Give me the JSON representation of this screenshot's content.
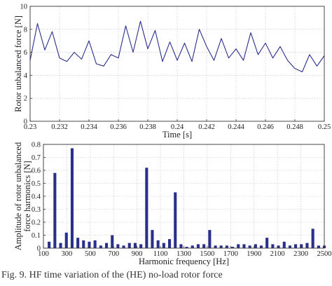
{
  "caption": "Fig. 9. HF time variation of the (HE) no-load rotor force",
  "colors": {
    "series": "#2b2f8c",
    "axis": "#333333",
    "grid": "#bdbdbd"
  },
  "chart_data": [
    {
      "type": "line",
      "xlabel": "Time [s]",
      "ylabel": "Rotor unbalanced force [N]",
      "xlim": [
        0.23,
        0.25
      ],
      "ylim": [
        0,
        10
      ],
      "xticks": [
        "0.23",
        "0.232",
        "0.234",
        "0.236",
        "0.238",
        "0.24",
        "0.242",
        "0.244",
        "0.246",
        "0.248",
        "0.25"
      ],
      "yticks": [
        "0",
        "2",
        "4",
        "6",
        "8",
        "10"
      ],
      "grid": true,
      "series": [
        {
          "x": [
            0.23,
            0.2305,
            0.231,
            0.2315,
            0.232,
            0.2325,
            0.233,
            0.2335,
            0.234,
            0.2345,
            0.235,
            0.2355,
            0.236,
            0.2365,
            0.237,
            0.2375,
            0.238,
            0.2385,
            0.239,
            0.2395,
            0.24,
            0.2405,
            0.241,
            0.2415,
            0.242,
            0.2425,
            0.243,
            0.2435,
            0.244,
            0.2445,
            0.245,
            0.2455,
            0.246,
            0.2465,
            0.247,
            0.2475,
            0.248,
            0.2485,
            0.249,
            0.2495,
            0.25
          ],
          "values": [
            5.3,
            8.5,
            6.2,
            7.8,
            5.5,
            5.2,
            6.0,
            5.4,
            7.0,
            5.0,
            4.8,
            5.8,
            5.5,
            8.3,
            6.0,
            8.7,
            6.3,
            7.9,
            5.2,
            6.9,
            5.3,
            6.8,
            5.2,
            8.0,
            6.5,
            5.3,
            7.2,
            5.5,
            6.3,
            5.3,
            7.7,
            5.8,
            6.8,
            5.5,
            6.5,
            5.3,
            4.6,
            4.3,
            5.8,
            4.8,
            5.7
          ]
        }
      ]
    },
    {
      "type": "bar",
      "xlabel": "Harmonic frequency [Hz]",
      "ylabel": "Amplitude of rotor unbalanced force harmonics [N]",
      "ylabel_lines": [
        "Amplitude of rotor unbalanced",
        "force harmonics [N]"
      ],
      "xlim": [
        50,
        2500
      ],
      "ylim": [
        0,
        0.8
      ],
      "xticks": [
        "100",
        "300",
        "500",
        "700",
        "900",
        "1100",
        "1300",
        "1500",
        "1700",
        "1900",
        "2100",
        "2300",
        "2500"
      ],
      "yticks": [
        "0",
        "0.1",
        "0.2",
        "0.3",
        "0.4",
        "0.5",
        "0.6",
        "0.7",
        "0.8"
      ],
      "grid": true,
      "x": [
        100,
        150,
        200,
        250,
        300,
        350,
        400,
        450,
        500,
        550,
        600,
        650,
        700,
        750,
        800,
        850,
        900,
        950,
        1000,
        1050,
        1100,
        1150,
        1200,
        1250,
        1300,
        1350,
        1400,
        1450,
        1500,
        1550,
        1600,
        1650,
        1700,
        1750,
        1800,
        1850,
        1900,
        1950,
        2000,
        2050,
        2100,
        2150,
        2200,
        2250,
        2300,
        2350,
        2400,
        2450,
        2500
      ],
      "values": [
        0.05,
        0.58,
        0.04,
        0.12,
        0.77,
        0.08,
        0.06,
        0.05,
        0.06,
        0.02,
        0.04,
        0.1,
        0.03,
        0.02,
        0.04,
        0.04,
        0.03,
        0.62,
        0.14,
        0.06,
        0.04,
        0.07,
        0.43,
        0.03,
        0.01,
        0.02,
        0.03,
        0.03,
        0.14,
        0.02,
        0.02,
        0.02,
        0.01,
        0.03,
        0.03,
        0.02,
        0.03,
        0.02,
        0.08,
        0.03,
        0.02,
        0.05,
        0.02,
        0.03,
        0.03,
        0.04,
        0.15,
        0.02,
        0.02
      ]
    }
  ]
}
